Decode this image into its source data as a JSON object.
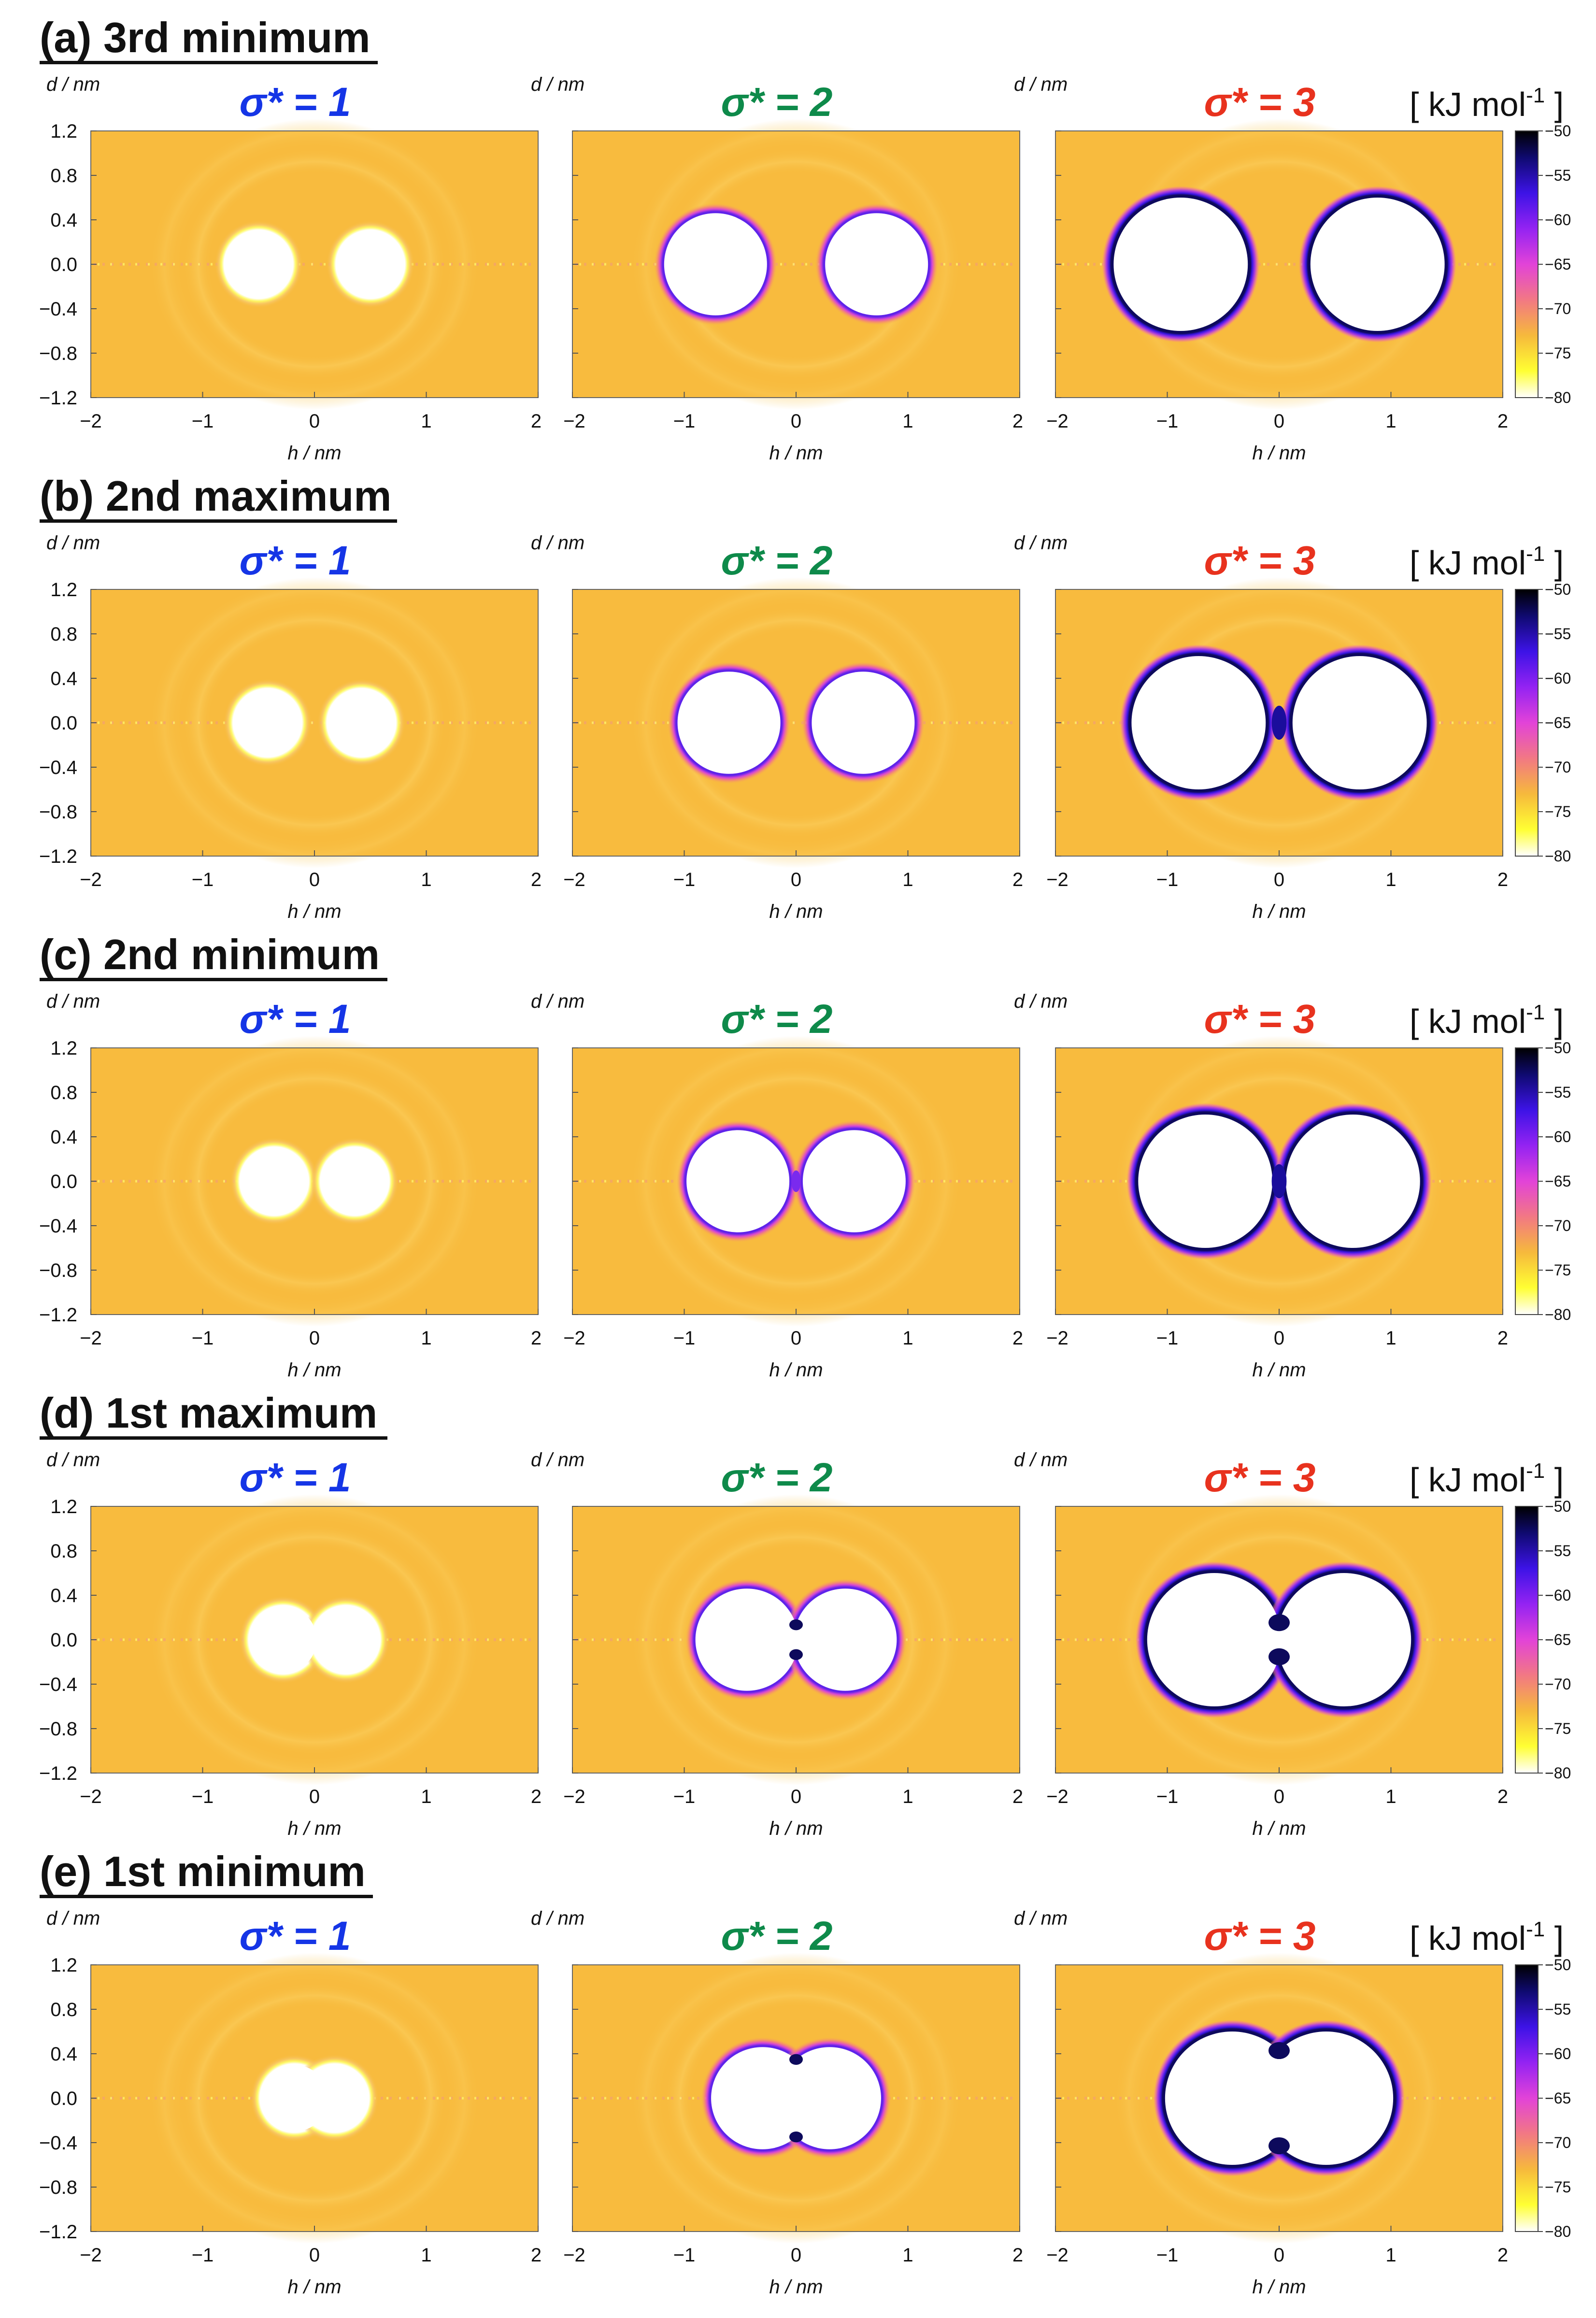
{
  "figure": {
    "row_titles": [
      "(a) 3rd minimum",
      "(b) 2nd maximum",
      "(c) 2nd minimum",
      "(d) 1st maximum",
      "(e) 1st minimum"
    ],
    "column_titles": [
      "σ* = 1",
      "σ* = 2",
      "σ* = 3"
    ],
    "column_title_colors": [
      "#1535e6",
      "#0e8a4a",
      "#e8321e"
    ],
    "y_axis_label": "d / nm",
    "x_axis_label": "h / nm",
    "colorbar_unit": "[ kJ mol",
    "colorbar_unit_superscript": "-1",
    "colorbar_unit_close": " ]"
  },
  "chart_data": {
    "type": "heatmap",
    "description_units": "potential energy map in kJ/mol",
    "x_range": [
      -2,
      2
    ],
    "y_range": [
      -1.2,
      1.2
    ],
    "x_ticks": [
      -2,
      -1,
      0,
      1,
      2
    ],
    "x_tick_labels": [
      "−2",
      "−1",
      "0",
      "1",
      "2"
    ],
    "y_ticks": [
      1.2,
      0.8,
      0.4,
      0.0,
      -0.4,
      -0.8,
      -1.2
    ],
    "y_tick_labels": [
      "1.2",
      "0.8",
      "0.4",
      "0.0",
      "−0.4",
      "−0.8",
      "−1.2"
    ],
    "colorbar_range": [
      -80,
      -50
    ],
    "colorbar_ticks": [
      -50,
      -55,
      -60,
      -65,
      -70,
      -75,
      -80
    ],
    "colorbar_tick_labels": [
      "−50",
      "−55",
      "−60",
      "−65",
      "−70",
      "−75",
      "−80"
    ],
    "colormap_stops": [
      {
        "value": -80,
        "color": "#ffffff"
      },
      {
        "value": -77,
        "color": "#ffff33"
      },
      {
        "value": -73,
        "color": "#f6b93c"
      },
      {
        "value": -69,
        "color": "#f27884"
      },
      {
        "value": -65,
        "color": "#e243d8"
      },
      {
        "value": -61,
        "color": "#9423f2"
      },
      {
        "value": -57,
        "color": "#3d13e6"
      },
      {
        "value": -53,
        "color": "#0f0a70"
      },
      {
        "value": -50,
        "color": "#000000"
      }
    ],
    "background_color": "#f8bb3e",
    "panels": [
      {
        "row": 0,
        "sigma": 1,
        "centers_nm": [
          -0.5,
          0.5
        ],
        "radius_nm": 0.3
      },
      {
        "row": 0,
        "sigma": 2,
        "centers_nm": [
          -0.72,
          0.72
        ],
        "radius_nm": 0.46
      },
      {
        "row": 0,
        "sigma": 3,
        "centers_nm": [
          -0.88,
          0.88
        ],
        "radius_nm": 0.6
      },
      {
        "row": 1,
        "sigma": 1,
        "centers_nm": [
          -0.42,
          0.42
        ],
        "radius_nm": 0.3
      },
      {
        "row": 1,
        "sigma": 2,
        "centers_nm": [
          -0.6,
          0.6
        ],
        "radius_nm": 0.46
      },
      {
        "row": 1,
        "sigma": 3,
        "centers_nm": [
          -0.72,
          0.72
        ],
        "radius_nm": 0.6
      },
      {
        "row": 2,
        "sigma": 1,
        "centers_nm": [
          -0.36,
          0.36
        ],
        "radius_nm": 0.3
      },
      {
        "row": 2,
        "sigma": 2,
        "centers_nm": [
          -0.52,
          0.52
        ],
        "radius_nm": 0.46
      },
      {
        "row": 2,
        "sigma": 3,
        "centers_nm": [
          -0.66,
          0.66
        ],
        "radius_nm": 0.6
      },
      {
        "row": 3,
        "sigma": 1,
        "centers_nm": [
          -0.28,
          0.28
        ],
        "radius_nm": 0.3
      },
      {
        "row": 3,
        "sigma": 2,
        "centers_nm": [
          -0.44,
          0.44
        ],
        "radius_nm": 0.46
      },
      {
        "row": 3,
        "sigma": 3,
        "centers_nm": [
          -0.58,
          0.58
        ],
        "radius_nm": 0.6
      },
      {
        "row": 4,
        "sigma": 1,
        "centers_nm": [
          -0.18,
          0.18
        ],
        "radius_nm": 0.3
      },
      {
        "row": 4,
        "sigma": 2,
        "centers_nm": [
          -0.3,
          0.3
        ],
        "radius_nm": 0.46
      },
      {
        "row": 4,
        "sigma": 3,
        "centers_nm": [
          -0.42,
          0.42
        ],
        "radius_nm": 0.6
      }
    ]
  }
}
